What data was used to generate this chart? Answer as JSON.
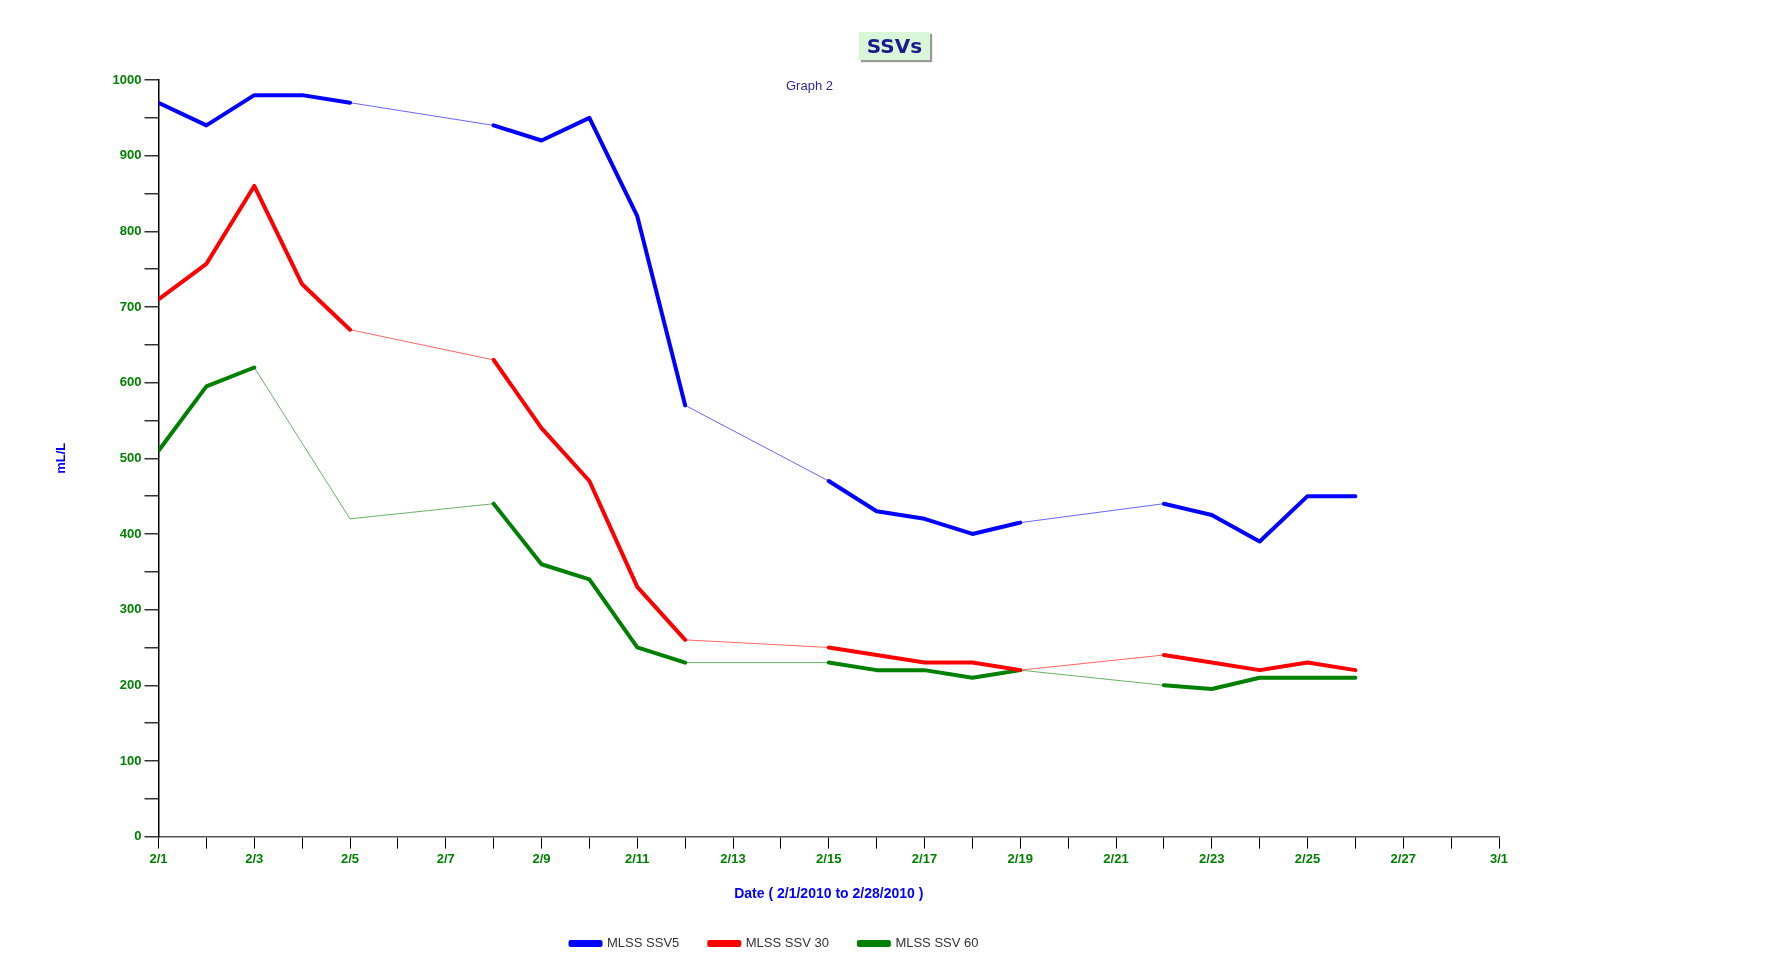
{
  "chart_data": {
    "type": "line",
    "title": "SSVs",
    "subtitle": "Graph 2",
    "xlabel": "Date ( 2/1/2010 to 2/28/2010 )",
    "ylabel": "mL/L",
    "xlim": [
      "2010-02-01",
      "2010-03-01"
    ],
    "xticks": [
      {
        "value": "2010-02-01",
        "label": "2/1"
      },
      {
        "value": "2010-02-02",
        "label": null
      },
      {
        "value": "2010-02-03",
        "label": "2/3"
      },
      {
        "value": "2010-02-04",
        "label": null
      },
      {
        "value": "2010-02-05",
        "label": "2/5"
      },
      {
        "value": "2010-02-06",
        "label": null
      },
      {
        "value": "2010-02-07",
        "label": "2/7"
      },
      {
        "value": "2010-02-08",
        "label": null
      },
      {
        "value": "2010-02-09",
        "label": "2/9"
      },
      {
        "value": "2010-02-10",
        "label": null
      },
      {
        "value": "2010-02-11",
        "label": "2/11"
      },
      {
        "value": "2010-02-12",
        "label": null
      },
      {
        "value": "2010-02-13",
        "label": "2/13"
      },
      {
        "value": "2010-02-14",
        "label": null
      },
      {
        "value": "2010-02-15",
        "label": "2/15"
      },
      {
        "value": "2010-02-16",
        "label": null
      },
      {
        "value": "2010-02-17",
        "label": "2/17"
      },
      {
        "value": "2010-02-18",
        "label": null
      },
      {
        "value": "2010-02-19",
        "label": "2/19"
      },
      {
        "value": "2010-02-20",
        "label": null
      },
      {
        "value": "2010-02-21",
        "label": "2/21"
      },
      {
        "value": "2010-02-22",
        "label": null
      },
      {
        "value": "2010-02-23",
        "label": "2/23"
      },
      {
        "value": "2010-02-24",
        "label": null
      },
      {
        "value": "2010-02-25",
        "label": "2/25"
      },
      {
        "value": "2010-02-26",
        "label": null
      },
      {
        "value": "2010-02-27",
        "label": "2/27"
      },
      {
        "value": "2010-02-28",
        "label": null
      },
      {
        "value": "2010-03-01",
        "label": "3/1"
      }
    ],
    "ylim": [
      0,
      1000
    ],
    "yticks": [
      0,
      {
        "value": 50,
        "label": null
      },
      100,
      {
        "value": 150,
        "label": null
      },
      200,
      {
        "value": 250,
        "label": null
      },
      300,
      {
        "value": 350,
        "label": null
      },
      400,
      {
        "value": 450,
        "label": null
      },
      500,
      {
        "value": 550,
        "label": null
      },
      600,
      {
        "value": 650,
        "label": null
      },
      700,
      {
        "value": 750,
        "label": null
      },
      800,
      {
        "value": 850,
        "label": null
      },
      900,
      {
        "value": 950,
        "label": null
      },
      1000
    ],
    "grid": false,
    "legend": "bottom",
    "marker": "none",
    "line_style": "solid",
    "series": [
      {
        "name": "MLSS SSV5",
        "color": "#0000ff",
        "x": [
          "2010-02-01",
          "2010-02-02",
          "2010-02-03",
          "2010-02-04",
          "2010-02-05",
          "2010-02-08",
          "2010-02-09",
          "2010-02-10",
          "2010-02-11",
          "2010-02-12",
          "2010-02-15",
          "2010-02-16",
          "2010-02-17",
          "2010-02-18",
          "2010-02-19",
          "2010-02-22",
          "2010-02-23",
          "2010-02-24",
          "2010-02-25",
          "2010-02-26"
        ],
        "values": [
          970,
          940,
          980,
          980,
          970,
          940,
          920,
          950,
          820,
          570,
          470,
          430,
          420,
          400,
          415,
          440,
          425,
          390,
          450,
          450
        ]
      },
      {
        "name": "MLSS SSV 30",
        "color": "#ff0000",
        "x": [
          "2010-02-01",
          "2010-02-02",
          "2010-02-03",
          "2010-02-04",
          "2010-02-05",
          "2010-02-08",
          "2010-02-09",
          "2010-02-10",
          "2010-02-11",
          "2010-02-12",
          "2010-02-15",
          "2010-02-16",
          "2010-02-17",
          "2010-02-18",
          "2010-02-19",
          "2010-02-22",
          "2010-02-23",
          "2010-02-24",
          "2010-02-25",
          "2010-02-26"
        ],
        "values": [
          710,
          757,
          860,
          730,
          670,
          630,
          540,
          470,
          330,
          260,
          250,
          240,
          230,
          230,
          220,
          240,
          230,
          220,
          230,
          220
        ]
      },
      {
        "name": "MLSS SSV 60",
        "color": "#008000",
        "x": [
          "2010-02-01",
          "2010-02-02",
          "2010-02-03",
          "2010-02-05",
          "2010-02-08",
          "2010-02-09",
          "2010-02-10",
          "2010-02-11",
          "2010-02-12",
          "2010-02-15",
          "2010-02-16",
          "2010-02-17",
          "2010-02-18",
          "2010-02-19",
          "2010-02-22",
          "2010-02-23",
          "2010-02-24",
          "2010-02-25",
          "2010-02-26"
        ],
        "values": [
          510,
          595,
          620,
          420,
          440,
          360,
          340,
          250,
          230,
          230,
          220,
          220,
          210,
          220,
          200,
          195,
          210,
          210,
          210
        ]
      }
    ]
  }
}
